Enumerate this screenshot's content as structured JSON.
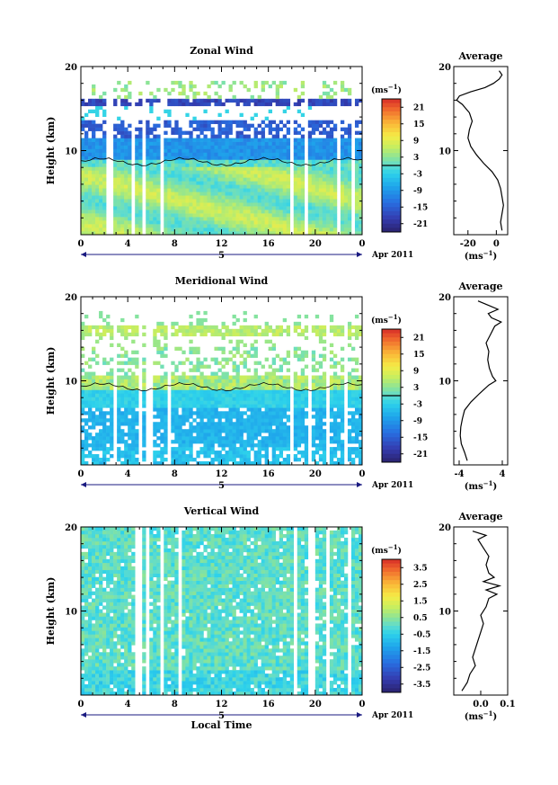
{
  "chart_data": [
    {
      "type": "heatmap",
      "title": "Zonal Wind",
      "ylabel": "Height (km)",
      "ylim": [
        0,
        20
      ],
      "yticks": [
        "20",
        "10"
      ],
      "xlim": [
        0,
        24
      ],
      "xticks": [
        "0",
        "4",
        "8",
        "12",
        "16",
        "20",
        "0"
      ],
      "day_label": "5",
      "date_label": "Apr 2011",
      "colorbar": {
        "unit": "(ms",
        "unit_exp": "−1",
        "unit_close": ")",
        "labels": [
          "21",
          "15",
          "9",
          "3",
          "-3",
          "-9",
          "-15",
          "-21"
        ],
        "range": [
          -24,
          24
        ]
      },
      "profile": {
        "title": "Average",
        "xlabel": "(ms",
        "xlabel_exp": "−1",
        "xlabel_close": ")",
        "xlim": [
          -30,
          8
        ],
        "xticks": [
          "-20",
          "0"
        ],
        "yticks": [
          "20",
          "10"
        ],
        "heights": [
          0.5,
          1.5,
          2.5,
          3.5,
          4.5,
          5.5,
          6.5,
          7.5,
          8.5,
          9.5,
          10.5,
          11.5,
          12.5,
          13.5,
          14.5,
          15.5,
          16.0,
          16.5,
          17.0,
          17.5,
          18.0,
          18.5,
          19.0,
          19.5
        ],
        "values": [
          4,
          3,
          4,
          5,
          4,
          3,
          1,
          -3,
          -9,
          -14,
          -18,
          -20,
          -19,
          -17,
          -19,
          -24,
          -28,
          -26,
          -18,
          -8,
          -2,
          2,
          4,
          2
        ]
      }
    },
    {
      "type": "heatmap",
      "title": "Meridional Wind",
      "ylabel": "Height (km)",
      "ylim": [
        0,
        20
      ],
      "yticks": [
        "20",
        "10"
      ],
      "xlim": [
        0,
        24
      ],
      "xticks": [
        "0",
        "4",
        "8",
        "12",
        "16",
        "20",
        "0"
      ],
      "day_label": "5",
      "date_label": "Apr 2011",
      "colorbar": {
        "unit": "(ms",
        "unit_exp": "−1",
        "unit_close": ")",
        "labels": [
          "21",
          "15",
          "9",
          "3",
          "-3",
          "-9",
          "-15",
          "-21"
        ],
        "range": [
          -24,
          24
        ]
      },
      "profile": {
        "title": "Average",
        "xlabel": "(ms",
        "xlabel_exp": "−1",
        "xlabel_close": ")",
        "xlim": [
          -5,
          5
        ],
        "xticks": [
          "-4",
          "4"
        ],
        "yticks": [
          "20",
          "10"
        ],
        "heights": [
          0.5,
          1.5,
          2.5,
          3.5,
          4.5,
          5.5,
          6.5,
          7.5,
          8.5,
          9.5,
          10.0,
          10.5,
          11.5,
          12.5,
          13.5,
          14.5,
          15.5,
          16.5,
          17.0,
          17.5,
          18.0,
          18.5,
          19.0,
          19.5
        ],
        "values": [
          -2.5,
          -3.0,
          -3.6,
          -3.8,
          -3.7,
          -3.4,
          -3.0,
          -1.8,
          -0.2,
          1.5,
          2.8,
          2.2,
          1.6,
          1.3,
          1.5,
          1.0,
          1.8,
          2.6,
          3.8,
          2.0,
          1.4,
          3.2,
          1.4,
          -0.5
        ]
      }
    },
    {
      "type": "heatmap",
      "title": "Vertical Wind",
      "xlabel": "Local Time",
      "ylabel": "Height (km)",
      "ylim": [
        0,
        20
      ],
      "yticks": [
        "20",
        "10"
      ],
      "xlim": [
        0,
        24
      ],
      "xticks": [
        "0",
        "4",
        "8",
        "12",
        "16",
        "20",
        "0"
      ],
      "day_label": "5",
      "date_label": "Apr 2011",
      "colorbar": {
        "unit": "(ms",
        "unit_exp": "−1",
        "unit_close": ")",
        "labels": [
          "3.5",
          "2.5",
          "1.5",
          "0.5",
          "-0.5",
          "-1.5",
          "-2.5",
          "-3.5"
        ],
        "range": [
          -4,
          4
        ]
      },
      "profile": {
        "title": "Average",
        "xlabel": "(ms",
        "xlabel_exp": "−1",
        "xlabel_close": ")",
        "xlim": [
          -0.1,
          0.1
        ],
        "xticks": [
          "0.0",
          "0.1"
        ],
        "yticks": [
          "20",
          "10"
        ],
        "heights": [
          0.5,
          1.5,
          2.5,
          3.5,
          4.5,
          5.5,
          6.5,
          7.5,
          8.5,
          9.5,
          10.5,
          11.5,
          12.0,
          12.5,
          13.0,
          13.5,
          14.0,
          14.5,
          15.5,
          16.5,
          17.5,
          18.5,
          19.0,
          19.5
        ],
        "values": [
          -0.07,
          -0.05,
          -0.04,
          -0.02,
          -0.03,
          -0.02,
          -0.01,
          0.0,
          0.01,
          0.0,
          0.02,
          0.03,
          0.06,
          0.02,
          0.07,
          0.01,
          0.05,
          0.03,
          0.02,
          0.03,
          0.01,
          -0.01,
          0.02,
          -0.03
        ]
      }
    }
  ]
}
